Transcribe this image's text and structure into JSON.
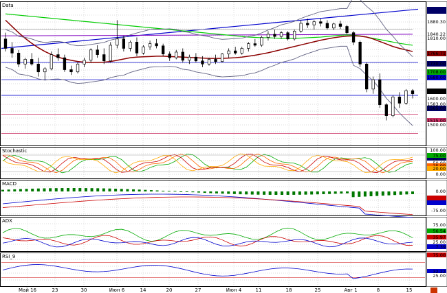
{
  "panels": {
    "price": {
      "title": "Data",
      "axis_labels": [
        "1880.30",
        "1840.22",
        "1810.00",
        "1766.71",
        "1730.00",
        "1708.00",
        "1680.00",
        "1628.00",
        "1600.00",
        "1583.00",
        "1565.00",
        "1515.00",
        "1500.00"
      ]
    },
    "stoch": {
      "title": "Stochastic",
      "axis_labels": [
        "100.00",
        "75.00",
        "56.35",
        "50.00",
        "25.00",
        "20.00",
        "0.00"
      ]
    },
    "macd": {
      "title": "MACD",
      "axis_labels": [
        "0.00",
        "-75.00"
      ]
    },
    "adx": {
      "title": "ADX",
      "axis_labels": [
        "75.00",
        "56.54",
        "35.97",
        "25.00",
        "7.39"
      ]
    },
    "rsi": {
      "title": "RSI_9",
      "axis_labels": [
        "75.00",
        "32.22",
        "25.00"
      ]
    }
  },
  "x_axis_labels": [
    "Май 16",
    "23",
    "30",
    "Июн 6",
    "14",
    "20",
    "27",
    "Июн 4",
    "11",
    "18",
    "25",
    "Авг 1",
    "8",
    "15"
  ],
  "colors": {
    "background": "#ffffff",
    "grid": "#b8b8b8",
    "bull_candle": "#ffffff",
    "bear_candle": "#000000",
    "trend_line": "#0000cc",
    "ma_red": "#8b0000",
    "ma_green": "#00cc00",
    "bollinger": "#606080",
    "purple_line": "#8000c0",
    "macd_hist": "#007700",
    "axis_box_dark": "#000066"
  },
  "chart_data": [
    {
      "type": "candlestick",
      "title": "Data",
      "ylim": [
        1480,
        1940
      ],
      "series": [
        {
          "name": "",
          "ohlc": [
            [
              1820,
              1840,
              1780,
              1790
            ],
            [
              1790,
              1810,
              1760,
              1775
            ],
            [
              1775,
              1785,
              1730,
              1740
            ],
            [
              1740,
              1760,
              1725,
              1755
            ],
            [
              1755,
              1775,
              1735,
              1740
            ],
            [
              1740,
              1760,
              1700,
              1715
            ],
            [
              1715,
              1730,
              1690,
              1725
            ],
            [
              1725,
              1780,
              1720,
              1770
            ],
            [
              1770,
              1790,
              1750,
              1760
            ],
            [
              1760,
              1770,
              1715,
              1722
            ],
            [
              1722,
              1735,
              1705,
              1715
            ],
            [
              1715,
              1745,
              1710,
              1740
            ],
            [
              1740,
              1760,
              1730,
              1752
            ],
            [
              1752,
              1790,
              1745,
              1785
            ],
            [
              1785,
              1800,
              1760,
              1770
            ],
            [
              1770,
              1790,
              1740,
              1750
            ],
            [
              1750,
              1810,
              1745,
              1800
            ],
            [
              1800,
              1880,
              1790,
              1820
            ],
            [
              1820,
              1830,
              1780,
              1790
            ],
            [
              1790,
              1815,
              1780,
              1810
            ],
            [
              1810,
              1825,
              1765,
              1775
            ],
            [
              1775,
              1800,
              1770,
              1795
            ],
            [
              1795,
              1815,
              1785,
              1805
            ],
            [
              1805,
              1820,
              1790,
              1798
            ],
            [
              1798,
              1805,
              1765,
              1772
            ],
            [
              1772,
              1780,
              1750,
              1760
            ],
            [
              1760,
              1785,
              1755,
              1778
            ],
            [
              1778,
              1790,
              1745,
              1752
            ],
            [
              1752,
              1770,
              1740,
              1762
            ],
            [
              1762,
              1775,
              1745,
              1750
            ],
            [
              1750,
              1765,
              1730,
              1740
            ],
            [
              1740,
              1760,
              1735,
              1755
            ],
            [
              1755,
              1770,
              1740,
              1748
            ],
            [
              1748,
              1775,
              1745,
              1772
            ],
            [
              1772,
              1790,
              1760,
              1782
            ],
            [
              1782,
              1795,
              1770,
              1775
            ],
            [
              1775,
              1795,
              1770,
              1790
            ],
            [
              1790,
              1810,
              1780,
              1805
            ],
            [
              1805,
              1820,
              1795,
              1800
            ],
            [
              1800,
              1830,
              1795,
              1825
            ],
            [
              1825,
              1845,
              1815,
              1835
            ],
            [
              1835,
              1850,
              1820,
              1828
            ],
            [
              1828,
              1845,
              1820,
              1840
            ],
            [
              1840,
              1845,
              1815,
              1820
            ],
            [
              1820,
              1850,
              1815,
              1845
            ],
            [
              1845,
              1880,
              1840,
              1870
            ],
            [
              1870,
              1885,
              1855,
              1865
            ],
            [
              1865,
              1880,
              1850,
              1875
            ],
            [
              1875,
              1885,
              1860,
              1870
            ],
            [
              1870,
              1880,
              1850,
              1855
            ],
            [
              1855,
              1872,
              1848,
              1868
            ],
            [
              1868,
              1878,
              1852,
              1860
            ],
            [
              1860,
              1865,
              1835,
              1840
            ],
            [
              1840,
              1845,
              1800,
              1810
            ],
            [
              1810,
              1815,
              1730,
              1740
            ],
            [
              1740,
              1745,
              1650,
              1660
            ],
            [
              1660,
              1700,
              1645,
              1690
            ],
            [
              1690,
              1710,
              1600,
              1610
            ],
            [
              1610,
              1615,
              1560,
              1575
            ],
            [
              1575,
              1640,
              1570,
              1635
            ],
            [
              1635,
              1650,
              1600,
              1615
            ],
            [
              1615,
              1660,
              1610,
              1655
            ],
            [
              1655,
              1660,
              1630,
              1645
            ]
          ]
        }
      ]
    },
    {
      "type": "line",
      "title": "Stochastic",
      "ylim": [
        0,
        100
      ]
    },
    {
      "type": "bar",
      "title": "MACD"
    },
    {
      "type": "line",
      "title": "ADX",
      "ylim": [
        0,
        100
      ]
    },
    {
      "type": "line",
      "title": "RSI_9",
      "ylim": [
        0,
        100
      ]
    }
  ]
}
